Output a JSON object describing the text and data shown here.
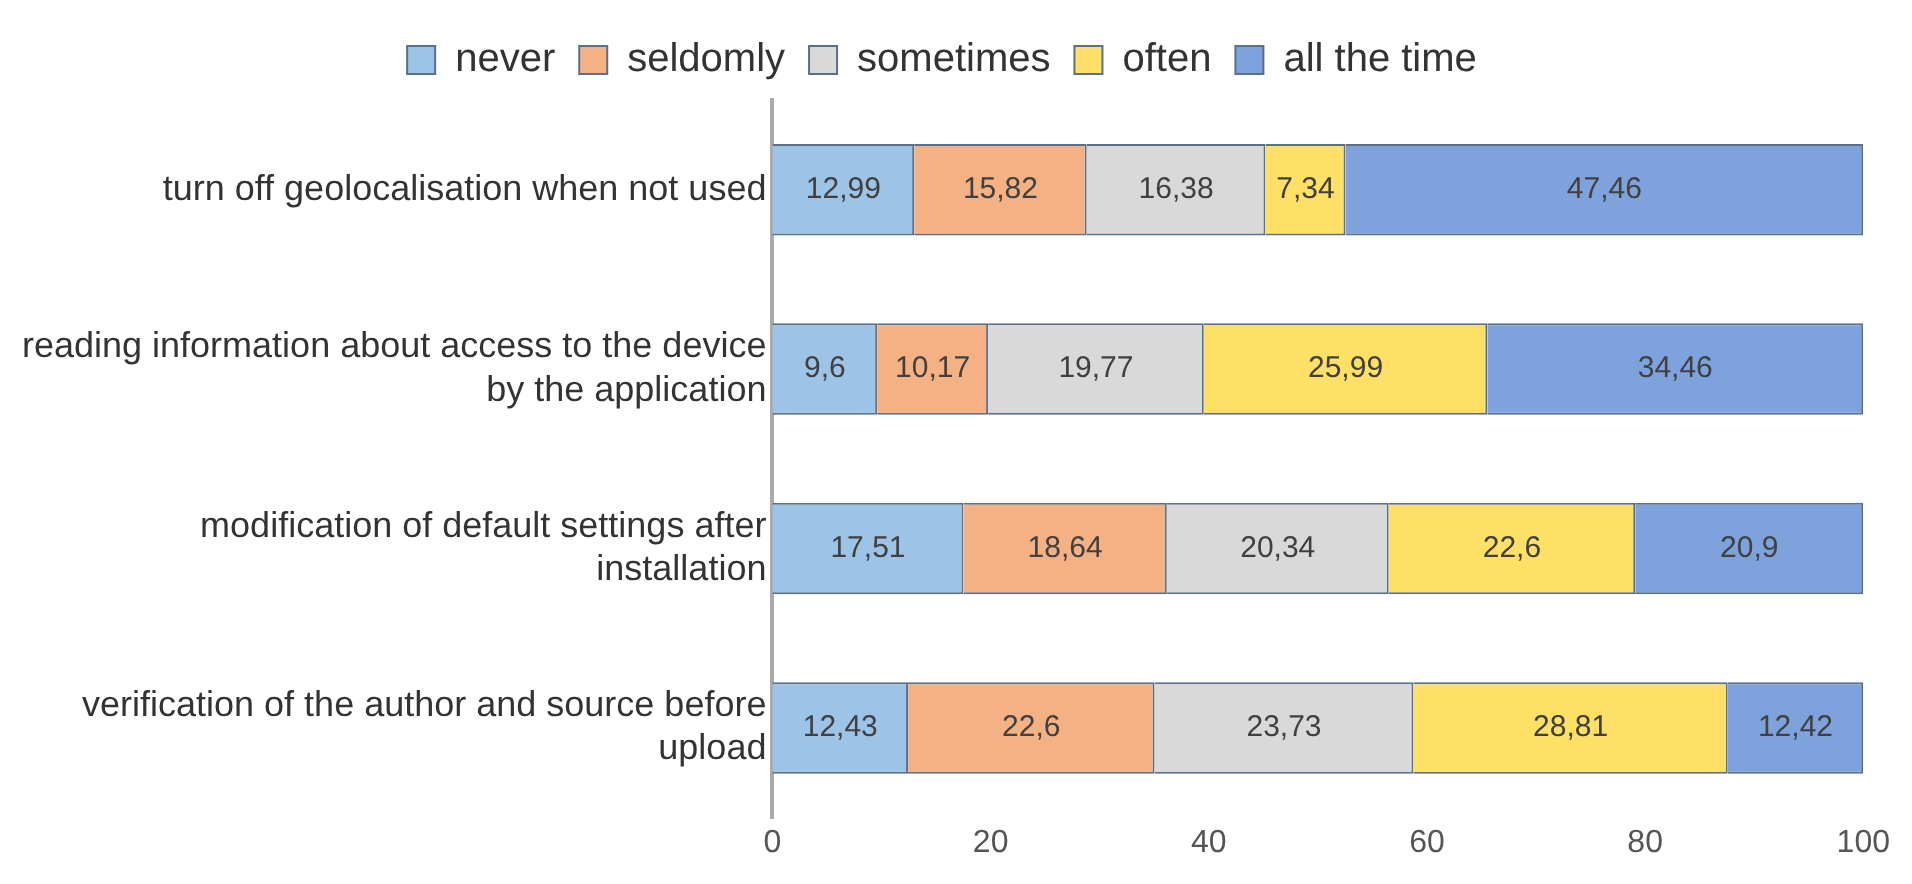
{
  "chart_data": {
    "type": "bar",
    "orientation": "horizontal",
    "stacked": true,
    "categories": [
      "turn off geolocalisation when not used",
      "reading information about access to the device by the application",
      "modification of default settings after installation",
      "verification of the author and source before upload"
    ],
    "series": [
      {
        "name": "never",
        "color": "#9dc3e6",
        "values": [
          12.99,
          9.6,
          17.51,
          12.43
        ],
        "value_labels": [
          "12,99",
          "9,6",
          "17,51",
          "12,43"
        ]
      },
      {
        "name": "seldomly",
        "color": "#f4b183",
        "values": [
          15.82,
          10.17,
          18.64,
          22.6
        ],
        "value_labels": [
          "15,82",
          "10,17",
          "18,64",
          "22,6"
        ]
      },
      {
        "name": "sometimes",
        "color": "#d9d9d9",
        "values": [
          16.38,
          19.77,
          20.34,
          23.73
        ],
        "value_labels": [
          "16,38",
          "19,77",
          "20,34",
          "23,73"
        ]
      },
      {
        "name": "often",
        "color": "#ffe066",
        "values": [
          7.34,
          25.99,
          22.6,
          28.81
        ],
        "value_labels": [
          "7,34",
          "25,99",
          "22,6",
          "28,81"
        ]
      },
      {
        "name": "all the time",
        "color": "#7da2dc",
        "values": [
          47.46,
          34.46,
          20.9,
          12.42
        ],
        "value_labels": [
          "47,46",
          "34,46",
          "20,9",
          "12,42"
        ]
      }
    ],
    "xlim": [
      0,
      100
    ],
    "xticks": [
      0,
      20,
      40,
      60,
      80,
      100
    ],
    "grid": false,
    "legend": "top"
  }
}
